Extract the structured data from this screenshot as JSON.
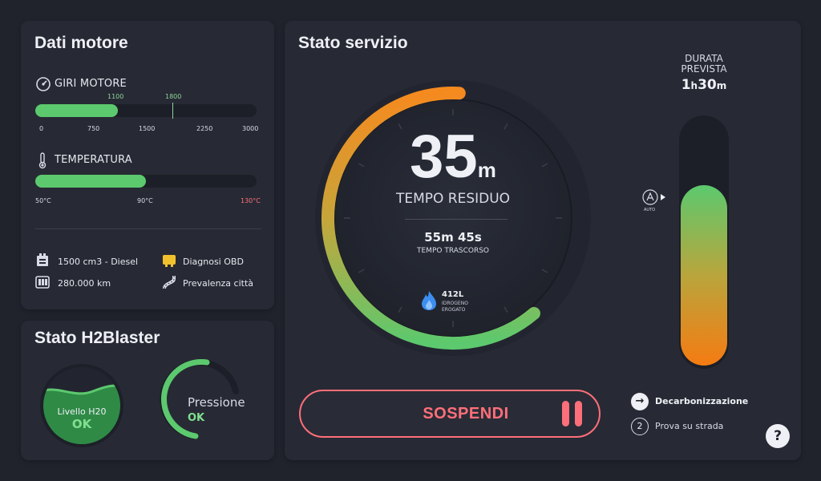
{
  "engine": {
    "title": "Dati motore",
    "rpm": {
      "label": "GIRI MOTORE",
      "value": 1100,
      "value_label": "1100",
      "limit_label": "1800",
      "max": 3000,
      "ticks": [
        "0",
        "750",
        "1500",
        "2250",
        "3000"
      ]
    },
    "temperature": {
      "label": "TEMPERATURA",
      "fill_fraction": 0.5,
      "ticks": [
        "50°C",
        "90°C",
        "130°C"
      ]
    },
    "specs": {
      "engine": "1500 cm3 - Diesel",
      "mileage": "280.000 km",
      "obd": "Diagnosi OBD",
      "usage": "Prevalenza città"
    }
  },
  "h2blaster": {
    "title": "Stato H2Blaster",
    "water": {
      "label": "Livello H20",
      "status": "OK",
      "level_fraction": 0.62
    },
    "pressure": {
      "label": "Pressione",
      "status": "OK",
      "arc_fraction": 0.35
    }
  },
  "service": {
    "title": "Stato servizio",
    "remaining": {
      "value": "35",
      "unit": "m",
      "label": "TEMPO RESIDUO"
    },
    "elapsed": {
      "value": "55m 45s",
      "label": "TEMPO TRASCORSO"
    },
    "hydrogen": {
      "value": "412L",
      "line1": "IDROGENO",
      "line2": "EROGATO"
    },
    "progress_fraction": 0.62,
    "duration": {
      "label_line1": "DURATA",
      "label_line2": "PREVISTA",
      "h": "1",
      "h_unit": "h",
      "m": "30",
      "m_unit": "m"
    },
    "vertical_fill_fraction": 0.72,
    "auto_label": "AUTO",
    "suspend_label": "SOSPENDI",
    "steps": [
      {
        "marker": "→",
        "label": "Decarbonizzazione",
        "active": true
      },
      {
        "marker": "2",
        "label": "Prova su strada",
        "active": false
      }
    ],
    "help": "?"
  },
  "colors": {
    "green": "#5cc96e",
    "orange": "#f58a1f",
    "red": "#ff6f7a",
    "panel": "#272a34",
    "bg": "#20232c"
  }
}
